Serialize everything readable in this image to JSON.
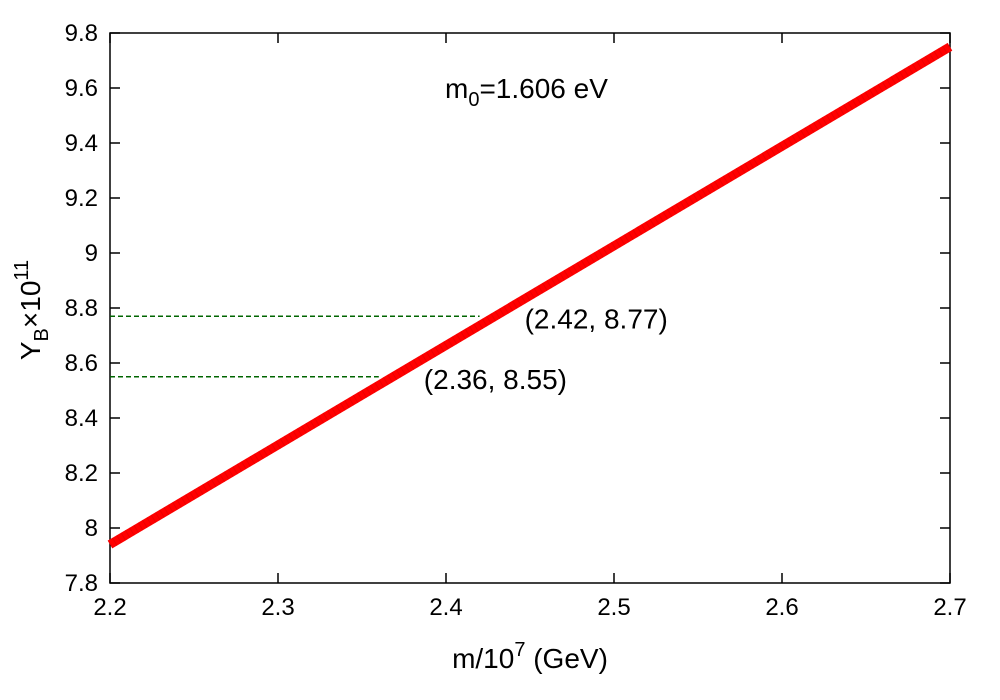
{
  "chart_data": {
    "type": "line",
    "xlabel": {
      "base": "m/10",
      "sup": "7",
      "rest": " (GeV)"
    },
    "ylabel": {
      "base": "Y",
      "sub": "B",
      "mid": "×10",
      "sup": "11"
    },
    "annotation_main": {
      "base": "m",
      "sub": "0",
      "rest": "=1.606 eV"
    },
    "xlim": [
      2.2,
      2.7
    ],
    "ylim": [
      7.8,
      9.8
    ],
    "x_ticks": [
      "2.2",
      "2.3",
      "2.4",
      "2.5",
      "2.6",
      "2.7"
    ],
    "y_ticks": [
      "7.8",
      "8",
      "8.2",
      "8.4",
      "8.6",
      "8.8",
      "9",
      "9.2",
      "9.4",
      "9.6",
      "9.8"
    ],
    "series": [
      {
        "color": "#ff0000",
        "x": [
          2.2,
          2.7
        ],
        "y": [
          7.94,
          9.75
        ]
      }
    ],
    "reference_lines": [
      {
        "x": 2.42,
        "y": 8.77,
        "label": "(2.42, 8.77)",
        "color": "#006400"
      },
      {
        "x": 2.36,
        "y": 8.55,
        "label": "(2.36, 8.55)",
        "color": "#006400"
      }
    ],
    "grid": false
  }
}
